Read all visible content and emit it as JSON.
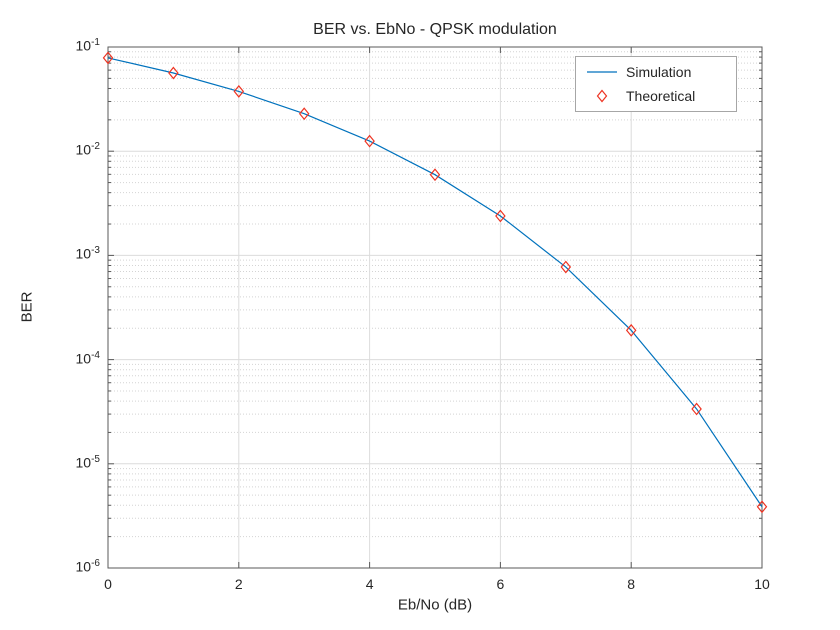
{
  "chart_data": {
    "type": "line",
    "title": "BER vs. EbNo - QPSK modulation",
    "xlabel": "Eb/No (dB)",
    "ylabel": "BER",
    "x": [
      0,
      1,
      2,
      3,
      4,
      5,
      6,
      7,
      8,
      9,
      10
    ],
    "series": [
      {
        "name": "Simulation",
        "style": "line",
        "color": "#0072BD",
        "values": [
          0.0786,
          0.0563,
          0.0375,
          0.0229,
          0.0125,
          0.00595,
          0.00239,
          0.000773,
          0.000191,
          3.36e-05,
          3.87e-06
        ]
      },
      {
        "name": "Theoretical",
        "style": "diamond-marker",
        "color": "#ee3322",
        "values": [
          0.0786,
          0.0563,
          0.0375,
          0.0229,
          0.0125,
          0.00595,
          0.00239,
          0.000773,
          0.000191,
          3.36e-05,
          3.87e-06
        ]
      }
    ],
    "xlim": [
      0,
      10
    ],
    "ylim": [
      1e-06,
      0.1
    ],
    "yscale": "log",
    "xticks": [
      0,
      2,
      4,
      6,
      8,
      10
    ],
    "ytick_exponents": [
      -1,
      -2,
      -3,
      -4,
      -5,
      -6
    ],
    "grid": true,
    "minor_grid": true,
    "legend_position": "northeast"
  },
  "colors": {
    "background": "#ffffff",
    "axis": "#5a5a5a",
    "text": "#262626",
    "major_grid": "#dcdcdc",
    "minor_grid": "#d4d4d4",
    "legend_border": "#a6a6a6"
  }
}
